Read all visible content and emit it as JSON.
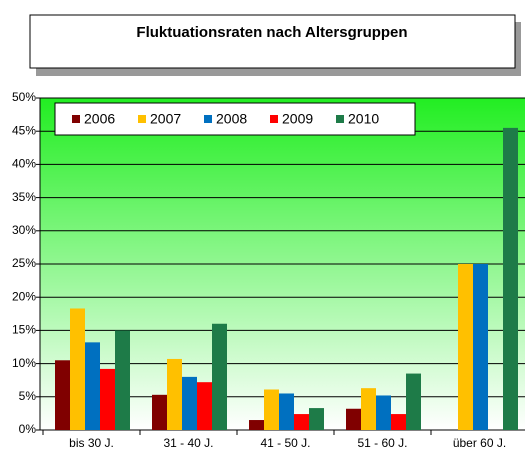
{
  "chart_data": {
    "type": "bar",
    "title": "Fluktuationsraten nach Altersgruppen",
    "categories": [
      "bis 30 J.",
      "31 - 40 J.",
      "41 - 50 J.",
      "51 - 60 J.",
      "über 60 J."
    ],
    "series": [
      {
        "name": "2006",
        "color": "#800000",
        "values": [
          10.5,
          5.3,
          1.5,
          3.2,
          0
        ]
      },
      {
        "name": "2007",
        "color": "#ffc000",
        "values": [
          18.3,
          10.7,
          6.1,
          6.3,
          25.0
        ]
      },
      {
        "name": "2008",
        "color": "#0070c0",
        "values": [
          13.2,
          8.0,
          5.5,
          5.2,
          25.0
        ]
      },
      {
        "name": "2009",
        "color": "#ff0000",
        "values": [
          9.2,
          7.2,
          2.4,
          2.4,
          0
        ]
      },
      {
        "name": "2010",
        "color": "#1e7b48",
        "values": [
          15.0,
          16.0,
          3.3,
          8.5,
          45.5
        ]
      }
    ],
    "ylim": [
      0,
      50
    ],
    "yticks": [
      {
        "value": 0,
        "label": "0%"
      },
      {
        "value": 5,
        "label": "5%"
      },
      {
        "value": 10,
        "label": "10%"
      },
      {
        "value": 15,
        "label": "15%"
      },
      {
        "value": 20,
        "label": "20%"
      },
      {
        "value": 25,
        "label": "25%"
      },
      {
        "value": 30,
        "label": "30%"
      },
      {
        "value": 35,
        "label": "35%"
      },
      {
        "value": 40,
        "label": "40%"
      },
      {
        "value": 45,
        "label": "45%"
      },
      {
        "value": 50,
        "label": "50%"
      }
    ],
    "grid": true,
    "legend": "top-left"
  }
}
